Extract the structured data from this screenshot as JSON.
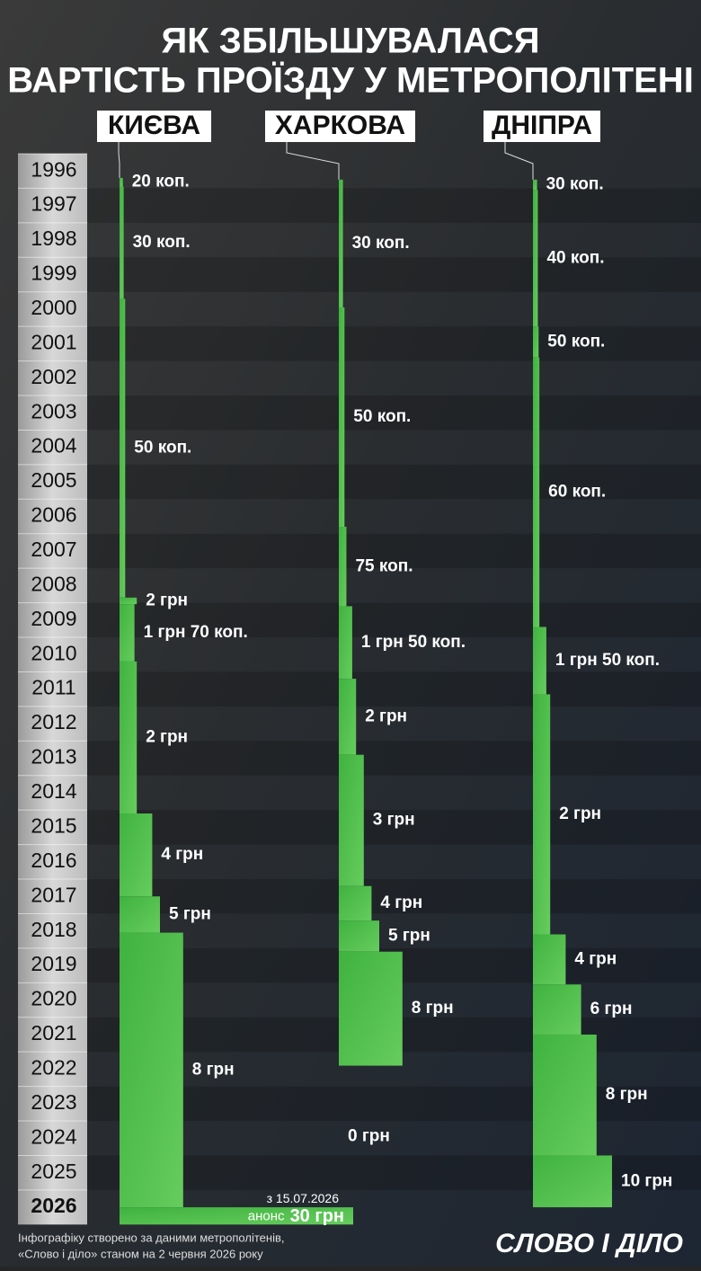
{
  "chart_data": {
    "type": "fare-timeline",
    "title_lines": [
      "ЯК ЗБІЛЬШУВАЛАСЯ",
      "ВАРТІСТЬ ПРОЇЗДУ У МЕТРОПОЛІТЕНІ"
    ],
    "years": [
      "1996",
      "1997",
      "1998",
      "1999",
      "2000",
      "2001",
      "2002",
      "2003",
      "2004",
      "2005",
      "2006",
      "2007",
      "2008",
      "2009",
      "2010",
      "2011",
      "2012",
      "2013",
      "2014",
      "2015",
      "2016",
      "2017",
      "2018",
      "2019",
      "2020",
      "2021",
      "2022",
      "2023",
      "2024",
      "2025",
      "2026"
    ],
    "cities": [
      {
        "name": "КИЄВА",
        "periods": [
          {
            "from": 1996.7,
            "to": 1996.95,
            "value": 0.2,
            "label": "20 коп."
          },
          {
            "from": 1996.95,
            "to": 2000.2,
            "value": 0.3,
            "label": "30 коп."
          },
          {
            "from": 2000.2,
            "to": 2008.85,
            "value": 0.5,
            "label": "50 коп."
          },
          {
            "from": 2008.85,
            "to": 2009.04,
            "value": 2,
            "label": "2 грн"
          },
          {
            "from": 2009.04,
            "to": 2010.7,
            "value": 1.7,
            "label": "1 грн 70 коп."
          },
          {
            "from": 2010.7,
            "to": 2015.1,
            "value": 2,
            "label": "2 грн"
          },
          {
            "from": 2015.1,
            "to": 2017.5,
            "value": 4,
            "label": "4 грн"
          },
          {
            "from": 2017.5,
            "to": 2018.55,
            "value": 5,
            "label": "5 грн"
          },
          {
            "from": 2018.55,
            "to": 2026.5,
            "value": 8,
            "label": "8 грн"
          }
        ],
        "announcement": {
          "note": "з 15.07.2026",
          "prefix": "анонс",
          "from": 2026.5,
          "to": 2027.0,
          "value": 30,
          "label": "30 грн"
        }
      },
      {
        "name": "ХАРКОВА",
        "periods": [
          {
            "from": 1996.75,
            "to": 2000.45,
            "value": 0.3,
            "label": "30 коп."
          },
          {
            "from": 2000.45,
            "to": 2006.8,
            "value": 0.5,
            "label": "50 коп."
          },
          {
            "from": 2006.8,
            "to": 2009.1,
            "value": 0.75,
            "label": "75 коп."
          },
          {
            "from": 2009.1,
            "to": 2011.2,
            "value": 1.5,
            "label": "1 грн 50 коп."
          },
          {
            "from": 2011.2,
            "to": 2013.4,
            "value": 2,
            "label": "2 грн"
          },
          {
            "from": 2013.4,
            "to": 2017.2,
            "value": 3,
            "label": "3 грн"
          },
          {
            "from": 2017.2,
            "to": 2018.2,
            "value": 4,
            "label": "4 грн"
          },
          {
            "from": 2018.2,
            "to": 2019.1,
            "value": 5,
            "label": "5 грн"
          },
          {
            "from": 2019.1,
            "to": 2022.4,
            "value": 8,
            "label": "8 грн"
          },
          {
            "from": 2022.4,
            "to": 2026.5,
            "value": 0,
            "label": "0 грн"
          }
        ]
      },
      {
        "name": "ДНІПРА",
        "periods": [
          {
            "from": 1996.75,
            "to": 1997.05,
            "value": 0.3,
            "label": "30 коп."
          },
          {
            "from": 1997.05,
            "to": 2001.0,
            "value": 0.4,
            "label": "40 коп."
          },
          {
            "from": 2001.0,
            "to": 2001.9,
            "value": 0.5,
            "label": "50 коп."
          },
          {
            "from": 2001.9,
            "to": 2009.7,
            "value": 0.6,
            "label": "60 коп."
          },
          {
            "from": 2009.7,
            "to": 2011.65,
            "value": 1.5,
            "label": "1 грн 50 коп."
          },
          {
            "from": 2011.65,
            "to": 2018.6,
            "value": 2,
            "label": "2 грн"
          },
          {
            "from": 2018.6,
            "to": 2020.05,
            "value": 4,
            "label": "4 грн"
          },
          {
            "from": 2020.05,
            "to": 2021.5,
            "value": 6,
            "label": "6 грн"
          },
          {
            "from": 2021.5,
            "to": 2025.0,
            "value": 8,
            "label": "8 грн"
          },
          {
            "from": 2025.0,
            "to": 2026.5,
            "value": 10,
            "label": "10 грн"
          }
        ]
      }
    ],
    "footer_lines": [
      "Інфографіку створено за даними метрополітенів,",
      "«Слово і діло» станом на 2 червня 2026 року"
    ],
    "logo": "СЛОВО І ДІЛО"
  }
}
